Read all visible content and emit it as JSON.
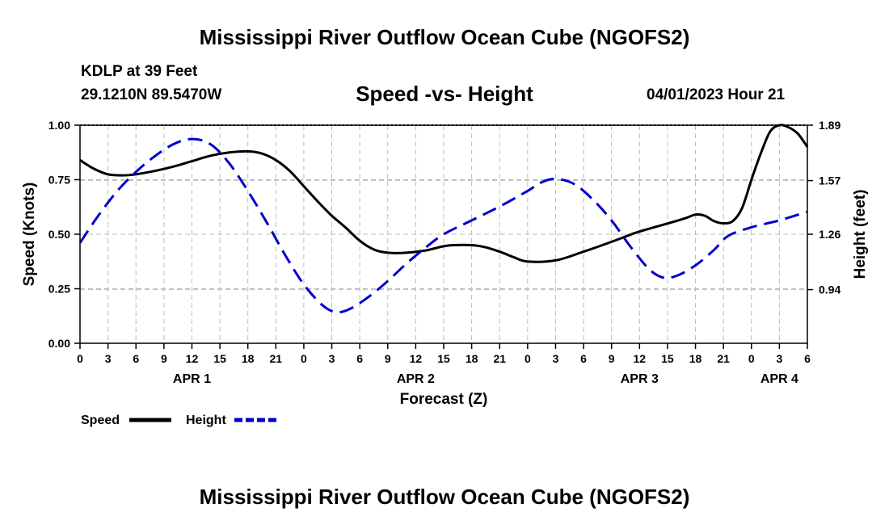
{
  "header": {
    "title": "Mississippi River Outflow Ocean Cube (NGOFS2)",
    "station": "KDLP at 39 Feet",
    "coords": "29.1210N  89.5470W",
    "subtitle": "Speed -vs- Height",
    "datetime": "04/01/2023 Hour 21"
  },
  "footer": {
    "title": "Mississippi River Outflow Ocean Cube (NGOFS2)"
  },
  "colors": {
    "speed": "#000000",
    "height": "#0000cc",
    "grid": "#bbbbbb"
  },
  "chart_data": {
    "type": "line",
    "title": "Speed -vs- Height",
    "xlabel": "Forecast (Z)",
    "ylabel": "Speed (Knots)",
    "y2label": "Height (feet)",
    "xlim": [
      0,
      78
    ],
    "ylim": [
      0,
      1
    ],
    "y2lim": [
      0.63,
      1.89
    ],
    "x_ticks": [
      0,
      3,
      6,
      9,
      12,
      15,
      18,
      21,
      24,
      27,
      30,
      33,
      36,
      39,
      42,
      45,
      48,
      51,
      54,
      57,
      60,
      63,
      66,
      69,
      72,
      75,
      78
    ],
    "x_tick_labels": [
      "0",
      "3",
      "6",
      "9",
      "12",
      "15",
      "18",
      "21",
      "0",
      "3",
      "6",
      "9",
      "12",
      "15",
      "18",
      "21",
      "0",
      "3",
      "6",
      "9",
      "12",
      "15",
      "18",
      "21",
      "0",
      "3",
      "6"
    ],
    "y_ticks": [
      0,
      0.25,
      0.5,
      0.75,
      1
    ],
    "y_tick_labels": [
      "0.00",
      "0.25",
      "0.50",
      "0.75",
      "1.00"
    ],
    "y2_ticks": [
      0.94,
      1.26,
      1.57,
      1.89
    ],
    "y2_tick_labels": [
      "0.94",
      "1.26",
      "1.57",
      "1.89"
    ],
    "day_labels": [
      {
        "x": 12,
        "label": "APR 1"
      },
      {
        "x": 36,
        "label": "APR 2"
      },
      {
        "x": 60,
        "label": "APR 3"
      },
      {
        "x": 75,
        "label": "APR 4"
      }
    ],
    "legend": [
      {
        "name": "Speed",
        "style": "solid"
      },
      {
        "name": "Height",
        "style": "dashed"
      }
    ],
    "series": [
      {
        "name": "Speed",
        "axis": "left",
        "x": [
          0,
          1.5,
          3,
          4.5,
          6,
          8,
          10,
          12,
          14,
          16,
          18,
          19.5,
          21,
          22.5,
          24,
          25.5,
          27,
          28.5,
          30,
          31.5,
          33,
          35,
          37,
          38,
          39,
          40,
          42,
          43.5,
          45,
          46.5,
          48,
          51,
          54,
          57,
          59.5,
          61,
          63.5,
          65,
          66,
          67,
          68,
          69,
          70,
          71,
          72,
          73,
          74,
          75,
          76,
          77,
          78
        ],
        "y": [
          0.84,
          0.8,
          0.775,
          0.77,
          0.775,
          0.79,
          0.81,
          0.835,
          0.86,
          0.875,
          0.88,
          0.87,
          0.84,
          0.79,
          0.72,
          0.65,
          0.585,
          0.53,
          0.47,
          0.43,
          0.415,
          0.415,
          0.425,
          0.435,
          0.445,
          0.45,
          0.45,
          0.44,
          0.42,
          0.395,
          0.375,
          0.38,
          0.42,
          0.465,
          0.505,
          0.525,
          0.555,
          0.575,
          0.59,
          0.585,
          0.56,
          0.55,
          0.56,
          0.62,
          0.75,
          0.87,
          0.97,
          1.0,
          0.99,
          0.96,
          0.9
        ]
      },
      {
        "name": "Height",
        "axis": "right",
        "x": [
          0,
          2,
          4,
          6,
          8,
          10,
          12,
          14,
          16,
          18,
          20,
          22,
          24,
          26,
          27.5,
          29,
          31,
          33,
          35,
          37,
          39,
          42,
          45,
          48,
          49.5,
          51,
          53,
          55,
          57,
          59,
          61,
          62.5,
          64,
          66,
          68,
          69.5,
          72,
          75,
          78
        ],
        "y": [
          1.21,
          1.37,
          1.51,
          1.62,
          1.71,
          1.78,
          1.81,
          1.78,
          1.67,
          1.51,
          1.33,
          1.14,
          0.97,
          0.85,
          0.81,
          0.83,
          0.9,
          0.99,
          1.09,
          1.18,
          1.26,
          1.34,
          1.42,
          1.51,
          1.56,
          1.58,
          1.55,
          1.46,
          1.34,
          1.19,
          1.06,
          1.01,
          1.02,
          1.08,
          1.17,
          1.25,
          1.3,
          1.34,
          1.39
        ]
      }
    ]
  }
}
